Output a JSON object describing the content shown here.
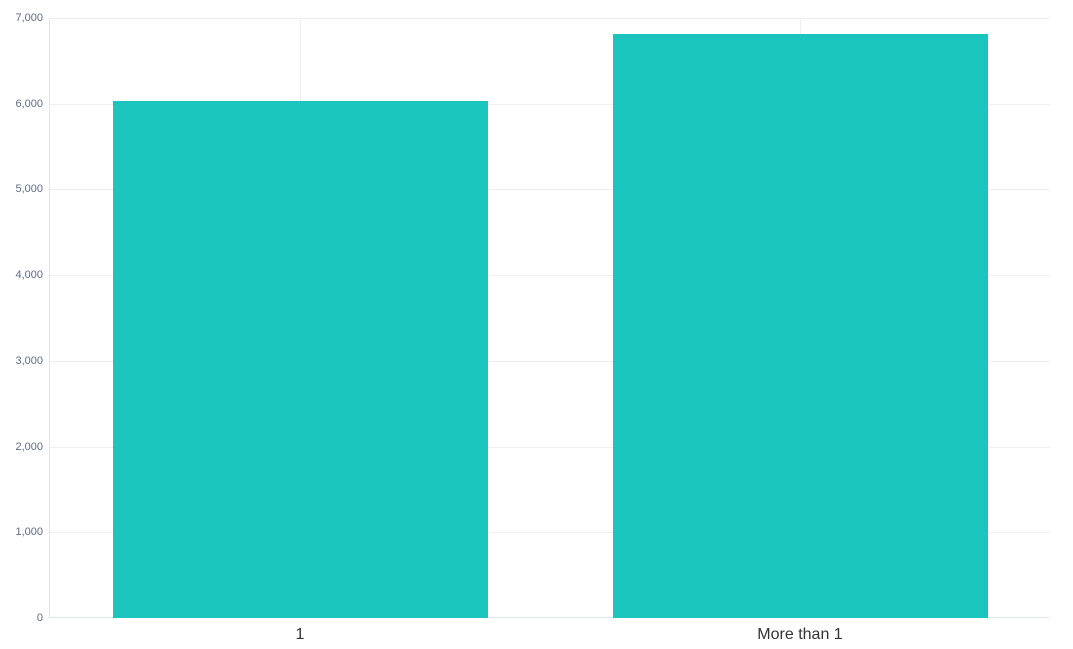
{
  "chart_data": {
    "type": "bar",
    "title": "",
    "xlabel": "",
    "ylabel": "",
    "categories": [
      "1",
      "More than 1"
    ],
    "values": [
      6030,
      6815
    ],
    "ylim": [
      0,
      7000
    ],
    "ytick_step": 1000,
    "ytick_labels": [
      "0",
      "1,000",
      "2,000",
      "3,000",
      "4,000",
      "5,000",
      "6,000",
      "7,000"
    ],
    "grid": true,
    "legend": false,
    "bar_band_fraction": 0.75,
    "colors": {
      "bar": "#19C5BD",
      "gridline": "#EBEFF5",
      "axis_line": "#E1E6EE",
      "ytick_label": "#5E6C84",
      "xtick_label": "#333333",
      "background": "#FFFFFF"
    }
  }
}
